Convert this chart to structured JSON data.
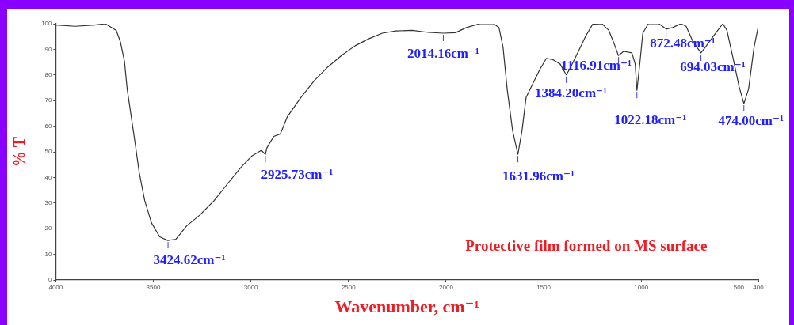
{
  "chart_data": {
    "type": "line",
    "xlabel": "Wavenumber, cm⁻¹",
    "ylabel": "% T",
    "xlim": [
      4000,
      400
    ],
    "xticks": [
      4000,
      3500,
      3000,
      2500,
      2000,
      1500,
      1000,
      500,
      400
    ],
    "ylim": [
      0,
      100
    ],
    "yticks": [
      0,
      10,
      20,
      30,
      40,
      50,
      60,
      70,
      80,
      90,
      100
    ],
    "grid": false,
    "legend": false,
    "marker": "none",
    "line_style": "solid",
    "series": [
      {
        "color": "#333333",
        "x": [
          4000,
          3900,
          3800,
          3746,
          3690,
          3669,
          3648,
          3634,
          3613,
          3592,
          3572,
          3544,
          3509,
          3467,
          3426,
          3384,
          3329,
          3259,
          3189,
          3120,
          3050,
          2995,
          2946,
          2926,
          2918,
          2883,
          2849,
          2814,
          2744,
          2675,
          2605,
          2536,
          2466,
          2397,
          2327,
          2257,
          2174,
          2091,
          2014,
          1952,
          1896,
          1827,
          1757,
          1729,
          1708,
          1687,
          1659,
          1632,
          1611,
          1590,
          1562,
          1520,
          1486,
          1451,
          1416,
          1384,
          1368,
          1326,
          1284,
          1249,
          1201,
          1166,
          1138,
          1117,
          1090,
          1048,
          1031,
          1022,
          1006,
          992,
          964,
          909,
          872,
          839,
          797,
          770,
          735,
          694,
          672,
          630,
          582,
          561,
          526,
          499,
          474,
          450,
          422,
          400
        ],
        "values": [
          99.5,
          99,
          99.5,
          100,
          97.4,
          93,
          85.4,
          74.5,
          63.6,
          52.7,
          41.8,
          30.9,
          22.2,
          16.8,
          15.4,
          15.9,
          21.1,
          25.5,
          30.9,
          37.5,
          44,
          48.4,
          50.6,
          49,
          51.6,
          56,
          57,
          63.6,
          71.2,
          77.8,
          83.2,
          87.6,
          91.4,
          94.1,
          96.3,
          97.2,
          97.4,
          96.6,
          96.3,
          96.5,
          98.5,
          100,
          100,
          98.5,
          90.8,
          74.5,
          58.2,
          49,
          58.2,
          71.2,
          75.6,
          82.1,
          86.5,
          85.9,
          84.3,
          80,
          82.1,
          88.6,
          95.2,
          99.8,
          100,
          97.4,
          92,
          87.6,
          89.2,
          88.6,
          84.3,
          74,
          85.4,
          96.3,
          100,
          100,
          97.9,
          98.5,
          100,
          99,
          93,
          88.6,
          90.8,
          95.2,
          100,
          97.4,
          85.4,
          75.6,
          68.8,
          74.5,
          90.8,
          99
        ]
      }
    ],
    "annotations": [
      {
        "text": "3424.62cm⁻¹",
        "x": 3424.62,
        "y": 15.4
      },
      {
        "text": "2925.73cm⁻¹",
        "x": 2925.73,
        "y": 49
      },
      {
        "text": "2014.16cm⁻¹",
        "x": 2014.16,
        "y": 96.3
      },
      {
        "text": "1631.96cm⁻¹",
        "x": 1631.96,
        "y": 49
      },
      {
        "text": "1384.20cm⁻¹",
        "x": 1384.2,
        "y": 80
      },
      {
        "text": "1116.91cm⁻¹",
        "x": 1116.91,
        "y": 87.6
      },
      {
        "text": "1022.18cm⁻¹",
        "x": 1022.18,
        "y": 74
      },
      {
        "text": "872.48cm⁻¹",
        "x": 872.48,
        "y": 97.9
      },
      {
        "text": "694.03cm⁻¹",
        "x": 694.03,
        "y": 88.6
      },
      {
        "text": "474.00cm⁻¹",
        "x": 474,
        "y": 68.8
      },
      "Protective film formed on MS surface"
    ]
  }
}
